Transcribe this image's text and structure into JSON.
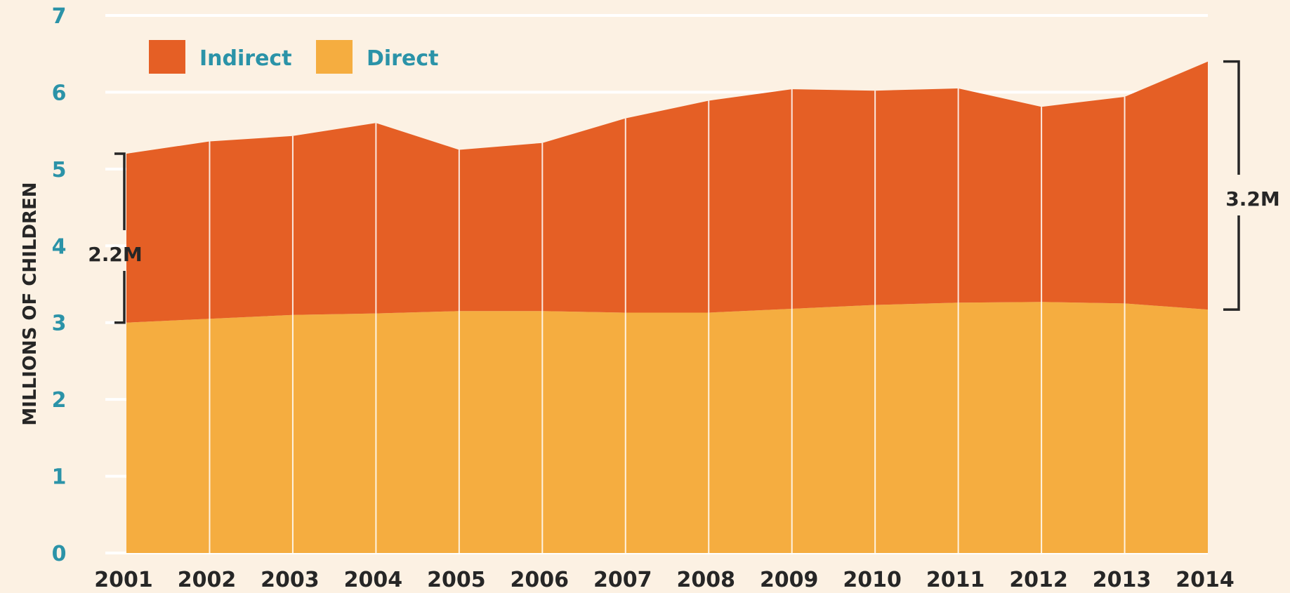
{
  "chart_data": {
    "type": "area",
    "stacked": true,
    "x": [
      "2001",
      "2002",
      "2003",
      "2004",
      "2005",
      "2006",
      "2007",
      "2008",
      "2009",
      "2010",
      "2011",
      "2012",
      "2013",
      "2014"
    ],
    "series": [
      {
        "name": "Direct",
        "color": "#f5ad40",
        "values": [
          3.0,
          3.05,
          3.1,
          3.12,
          3.15,
          3.15,
          3.13,
          3.13,
          3.18,
          3.23,
          3.26,
          3.27,
          3.25,
          3.17
        ]
      },
      {
        "name": "Indirect",
        "color": "#e55f25",
        "values": [
          2.2,
          2.31,
          2.33,
          2.48,
          2.1,
          2.19,
          2.53,
          2.76,
          2.86,
          2.79,
          2.79,
          2.54,
          2.69,
          3.23
        ]
      }
    ],
    "ylabel": "MILLIONS OF CHILDREN",
    "xlabel": "",
    "ylim": [
      0,
      7
    ],
    "yticks": [
      "0",
      "1",
      "2",
      "3",
      "4",
      "5",
      "6",
      "7"
    ],
    "grid": true,
    "legend": "top-left",
    "annotations": [
      {
        "label": "2.2M",
        "at": "2001",
        "side": "left",
        "range": [
          3.0,
          5.2
        ]
      },
      {
        "label": "3.2M",
        "at": "2014",
        "side": "right",
        "range": [
          3.17,
          6.4
        ]
      }
    ]
  }
}
